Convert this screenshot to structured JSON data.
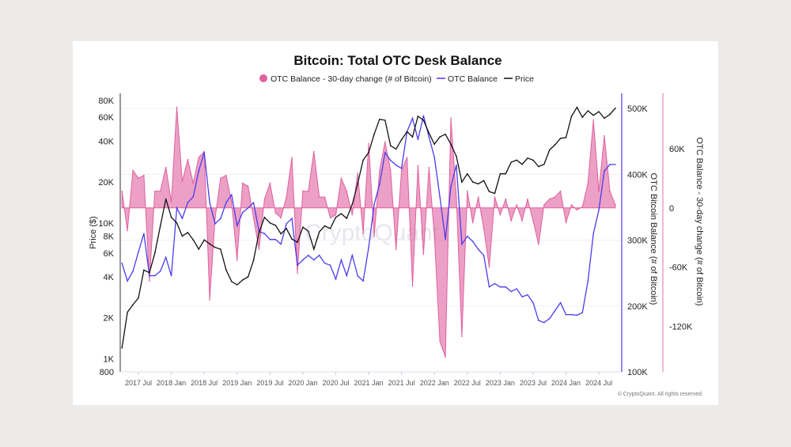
{
  "chart_data": {
    "type": "line",
    "title": "Bitcoin: Total OTC Desk Balance",
    "legend": [
      {
        "name": "OTC Balance - 30-day change (# of Bitcoin)",
        "color": "#e0609f",
        "marker": "circle"
      },
      {
        "name": "OTC Balance",
        "color": "#4b3bf0",
        "marker": "line"
      },
      {
        "name": "Price",
        "color": "#111111",
        "marker": "line"
      }
    ],
    "legend_placement": "top-center",
    "y_left": {
      "label": "Price ($)",
      "scale": "log",
      "range": [
        800,
        90000
      ],
      "ticks": [
        "80K",
        "60K",
        "40K",
        "20K",
        "10K",
        "8K",
        "6K",
        "4K",
        "2K",
        "1K",
        "800"
      ],
      "tick_values": [
        80000,
        60000,
        40000,
        20000,
        10000,
        8000,
        6000,
        4000,
        2000,
        1000,
        800
      ]
    },
    "y_right1": {
      "label": "OTC Bitcoin Balance (# of Bitcoin)",
      "scale": "linear",
      "range": [
        100000,
        523000
      ],
      "ticks": [
        "500K",
        "400K",
        "300K",
        "200K",
        "100K"
      ],
      "tick_values": [
        500000,
        400000,
        300000,
        200000,
        100000
      ],
      "color": "#4b3bf0"
    },
    "y_right2": {
      "label": "OTC Balance - 30-day change (# of Bitcoin)",
      "scale": "linear",
      "range": [
        -166000,
        116000
      ],
      "ticks": [
        "60K",
        "0",
        "-60K",
        "-120K"
      ],
      "tick_values": [
        60000,
        0,
        -60000,
        -120000
      ],
      "color": "#e0609f"
    },
    "x_ticks": [
      "2017 Jul",
      "2018 Jan",
      "2018 Jul",
      "2019 Jan",
      "2019 Jul",
      "2020 Jan",
      "2020 Jul",
      "2021 Jan",
      "2021 Jul",
      "2022 Jan",
      "2022 Jul",
      "2023 Jan",
      "2023 Jul",
      "2024 Jan",
      "2024 Jul"
    ],
    "grid": "horizontal",
    "x": [
      "2017-04",
      "2017-05",
      "2017-06",
      "2017-07",
      "2017-08",
      "2017-09",
      "2017-10",
      "2017-11",
      "2017-12",
      "2018-01",
      "2018-02",
      "2018-03",
      "2018-04",
      "2018-05",
      "2018-06",
      "2018-07",
      "2018-08",
      "2018-09",
      "2018-10",
      "2018-11",
      "2018-12",
      "2019-01",
      "2019-02",
      "2019-03",
      "2019-04",
      "2019-05",
      "2019-06",
      "2019-07",
      "2019-08",
      "2019-09",
      "2019-10",
      "2019-11",
      "2019-12",
      "2020-01",
      "2020-02",
      "2020-03",
      "2020-04",
      "2020-05",
      "2020-06",
      "2020-07",
      "2020-08",
      "2020-09",
      "2020-10",
      "2020-11",
      "2020-12",
      "2021-01",
      "2021-02",
      "2021-03",
      "2021-04",
      "2021-05",
      "2021-06",
      "2021-07",
      "2021-08",
      "2021-09",
      "2021-10",
      "2021-11",
      "2021-12",
      "2022-01",
      "2022-02",
      "2022-03",
      "2022-04",
      "2022-05",
      "2022-06",
      "2022-07",
      "2022-08",
      "2022-09",
      "2022-10",
      "2022-11",
      "2022-12",
      "2023-01",
      "2023-02",
      "2023-03",
      "2023-04",
      "2023-05",
      "2023-06",
      "2023-07",
      "2023-08",
      "2023-09",
      "2023-10",
      "2023-11",
      "2023-12",
      "2024-01",
      "2024-02",
      "2024-03",
      "2024-04",
      "2024-05",
      "2024-06",
      "2024-07",
      "2024-08",
      "2024-09",
      "2024-10"
    ],
    "series": [
      {
        "name": "Price",
        "axis": "left",
        "values": [
          1200,
          2200,
          2500,
          2800,
          4500,
          4300,
          6000,
          9500,
          15000,
          11000,
          10000,
          8000,
          8500,
          7500,
          6400,
          7500,
          7000,
          6600,
          6400,
          4500,
          3700,
          3500,
          3800,
          4000,
          5300,
          8500,
          11000,
          10000,
          9600,
          8300,
          9100,
          7600,
          7200,
          9300,
          8700,
          6400,
          8600,
          9500,
          9100,
          11000,
          11700,
          10800,
          13700,
          19500,
          29000,
          33000,
          45000,
          58000,
          57000,
          37000,
          35000,
          41000,
          47000,
          43000,
          61000,
          57000,
          46000,
          38000,
          43000,
          45000,
          38000,
          31000,
          20000,
          23000,
          20000,
          19400,
          20500,
          17000,
          16500,
          23000,
          23000,
          28000,
          29000,
          27000,
          30000,
          29000,
          26000,
          27000,
          34500,
          37700,
          42000,
          42500,
          61000,
          71000,
          60000,
          67000,
          62000,
          66000,
          59000,
          63000,
          70000
        ]
      },
      {
        "name": "OTC Balance",
        "axis": "right1",
        "values": [
          265000,
          238000,
          253000,
          282000,
          310000,
          246000,
          246000,
          253000,
          274000,
          246000,
          349000,
          333000,
          357000,
          366000,
          405000,
          433000,
          357000,
          325000,
          333000,
          357000,
          369000,
          322000,
          342000,
          349000,
          357000,
          313000,
          310000,
          301000,
          301000,
          294000,
          325000,
          333000,
          262000,
          270000,
          277000,
          270000,
          277000,
          265000,
          262000,
          241000,
          270000,
          246000,
          277000,
          246000,
          238000,
          289000,
          354000,
          385000,
          433000,
          421000,
          414000,
          409000,
          465000,
          485000,
          453000,
          489000,
          457000,
          426000,
          366000,
          301000,
          381000,
          414000,
          294000,
          306000,
          298000,
          286000,
          277000,
          229000,
          234000,
          229000,
          229000,
          222000,
          226000,
          214000,
          217000,
          205000,
          178000,
          175000,
          181000,
          193000,
          205000,
          187000,
          187000,
          186000,
          190000,
          238000,
          310000,
          346000,
          405000,
          415000,
          415000
        ]
      },
      {
        "name": "OTC Balance - 30-day change (# of Bitcoin)",
        "axis": "right2",
        "values": [
          17000,
          -23000,
          38000,
          30000,
          33000,
          -74000,
          17000,
          17000,
          41000,
          6000,
          102000,
          27000,
          49000,
          25000,
          51000,
          57000,
          -93000,
          -10000,
          30000,
          33000,
          6000,
          -53000,
          25000,
          22000,
          -10000,
          -42000,
          9000,
          25000,
          -5000,
          -10000,
          11000,
          51000,
          -66000,
          17000,
          17000,
          57000,
          11000,
          11000,
          -10000,
          -7000,
          30000,
          17000,
          -7000,
          35000,
          -26000,
          65000,
          -29000,
          38000,
          67000,
          38000,
          -42000,
          38000,
          51000,
          -79000,
          43000,
          -47000,
          41000,
          -29000,
          -135000,
          -151000,
          91000,
          11000,
          -130000,
          17000,
          -15000,
          11000,
          -21000,
          -60000,
          11000,
          -7000,
          9000,
          -13000,
          3000,
          -13000,
          9000,
          -13000,
          -37000,
          3000,
          9000,
          11000,
          17000,
          -15000,
          3000,
          -2000,
          1000,
          25000,
          89000,
          17000,
          73000,
          17000,
          3000
        ]
      }
    ]
  },
  "watermark": "CryptoQuant",
  "copyright": "© CryptoQuant. All rights reserved"
}
